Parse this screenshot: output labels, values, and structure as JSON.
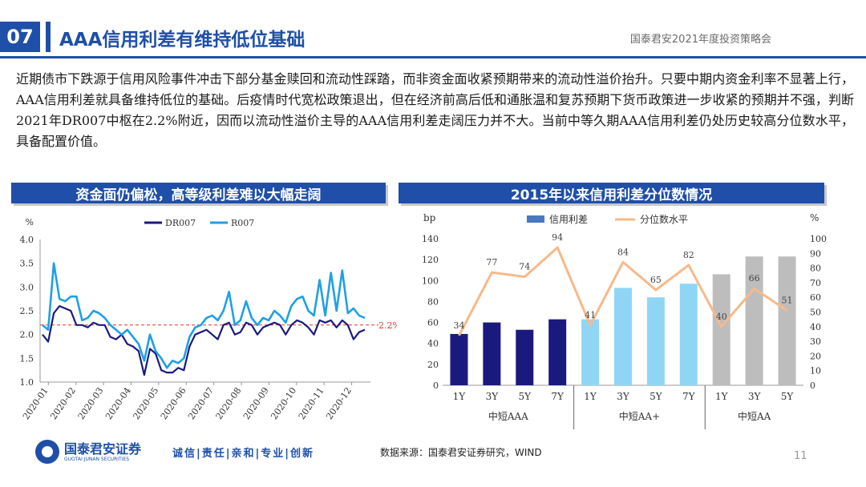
{
  "header": {
    "section_number": "07",
    "title": "AAA信用利差有维持低位基础",
    "report_name": "国泰君安2021年度投资策略会"
  },
  "body_text": "近期债市下跌源于信用风险事件冲击下部分基金赎回和流动性踩踏，而非资金面收紧预期带来的流动性溢价抬升。只要中期内资金利率不显著上行，AAA信用利差就具备维持低位的基础。后疫情时代宽松政策退出，但在经济前高后低和通胀温和复苏预期下货币政策进一步收紧的预期并不强，判断2021年DR007中枢在2.2%附近，因而以流动性溢价主导的AAA信用利差走阔压力并不大。当前中等久期AAA信用利差仍处历史较高分位数水平，具备配置价值。",
  "left_banner": "资金面仍偏松，高等级利差难以大幅走阔",
  "right_banner": "2015年以来信用利差分位数情况",
  "chart_data": [
    {
      "type": "line",
      "ylabel": "%",
      "ylim": [
        1.0,
        4.0
      ],
      "yticks": [
        "4.0",
        "3.5",
        "3.0",
        "2.5",
        "2.0",
        "1.5",
        "1.0"
      ],
      "xticks": [
        "2020-01",
        "2020-02",
        "2020-03",
        "2020-04",
        "2020-05",
        "2020-06",
        "2020-07",
        "2020-08",
        "2020-09",
        "2020-10",
        "2020-11",
        "2020-12"
      ],
      "reference_line": {
        "value": 2.2,
        "label": "2.2%"
      },
      "series": [
        {
          "name": "DR007",
          "color": "#1a1a7e",
          "values": [
            2.0,
            1.85,
            2.45,
            2.6,
            2.55,
            2.5,
            2.2,
            2.2,
            2.15,
            2.25,
            2.2,
            2.2,
            1.95,
            1.9,
            2.0,
            1.8,
            1.75,
            1.65,
            1.15,
            1.7,
            1.6,
            1.25,
            1.2,
            1.2,
            1.3,
            1.25,
            1.75,
            2.0,
            2.05,
            2.1,
            2.0,
            1.9,
            2.2,
            2.25,
            2.0,
            2.05,
            2.25,
            2.2,
            2.0,
            2.15,
            2.2,
            2.25,
            2.2,
            2.0,
            2.2,
            2.3,
            2.25,
            2.15,
            2.0,
            2.3,
            2.25,
            2.3,
            2.15,
            2.3,
            2.2,
            1.9,
            2.05,
            2.1
          ]
        },
        {
          "name": "R007",
          "color": "#1ea0e6",
          "values": [
            2.2,
            2.1,
            3.5,
            2.75,
            2.7,
            2.8,
            2.8,
            2.3,
            2.35,
            2.5,
            2.45,
            2.35,
            2.2,
            2.1,
            2.0,
            2.1,
            1.95,
            1.8,
            1.45,
            2.0,
            1.65,
            1.5,
            1.3,
            1.45,
            1.4,
            1.5,
            1.95,
            2.15,
            2.2,
            2.35,
            2.4,
            2.3,
            2.5,
            2.9,
            2.2,
            2.3,
            2.7,
            2.35,
            2.2,
            2.35,
            2.3,
            2.5,
            2.4,
            2.25,
            2.6,
            2.75,
            2.8,
            2.5,
            2.4,
            3.15,
            2.4,
            3.3,
            2.5,
            3.35,
            2.45,
            2.55,
            2.4,
            2.35
          ]
        }
      ]
    },
    {
      "type": "bar",
      "ylabel_left": "bp",
      "ylabel_right": "%",
      "ylim_left": [
        0,
        140
      ],
      "ylim_right": [
        0,
        100
      ],
      "yticks_left": [
        "140",
        "120",
        "100",
        "80",
        "60",
        "40",
        "20",
        "0"
      ],
      "yticks_right": [
        "100",
        "90",
        "80",
        "70",
        "60",
        "50",
        "40",
        "30",
        "20",
        "10",
        "0"
      ],
      "legend": [
        "信用利差",
        "分位数水平"
      ],
      "categories": [
        "1Y",
        "3Y",
        "5Y",
        "7Y",
        "1Y",
        "3Y",
        "5Y",
        "7Y",
        "1Y",
        "3Y",
        "5Y"
      ],
      "groups": [
        {
          "label": "中短AAA",
          "count": 4,
          "color": "#1a1a7e"
        },
        {
          "label": "中短AA+",
          "count": 4,
          "color": "#8fd6f5"
        },
        {
          "label": "中短AA",
          "count": 3,
          "color": "#bdbdbd"
        }
      ],
      "credit_spread_bp": [
        49,
        60,
        53,
        63,
        63,
        93,
        84,
        97,
        106,
        123,
        123
      ],
      "percentile": [
        34,
        77,
        74,
        94,
        41,
        84,
        65,
        82,
        40,
        66,
        51
      ],
      "percentile_labels": [
        "34",
        "77",
        "74",
        "94",
        "41",
        "84",
        "65",
        "82",
        "40",
        "66",
        "51"
      ],
      "line_color": "#f7b98a"
    }
  ],
  "footer": {
    "company_cn": "国泰君安证券",
    "company_en": "GUOTAI JUNAN SECURITIES",
    "slogan": "诚信|责任|亲和|专业|创新",
    "source": "数据来源：国泰君安证券研究，WIND",
    "page": "11"
  }
}
